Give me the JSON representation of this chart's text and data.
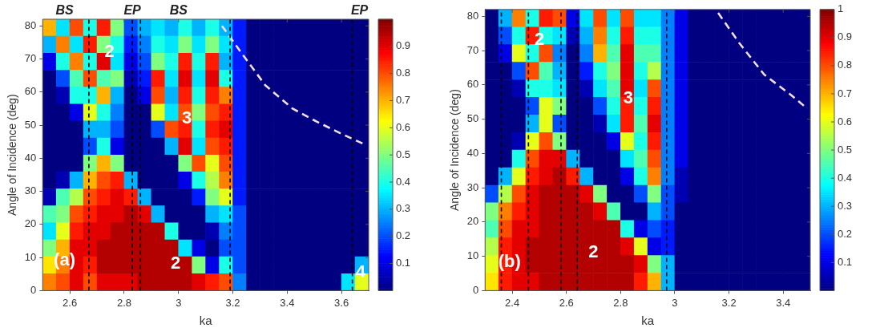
{
  "chart_data": [
    {
      "type": "heatmap",
      "xlabel": "ka",
      "ylabel": "Angle of Incidence (deg)",
      "x": [
        2.525,
        2.575,
        2.625,
        2.675,
        2.725,
        2.775,
        2.825,
        2.875,
        2.925,
        2.975,
        3.025,
        3.075,
        3.125,
        3.175,
        3.225,
        3.275,
        3.325,
        3.375,
        3.425,
        3.475,
        3.525,
        3.575,
        3.625,
        3.675
      ],
      "xlim": [
        2.5,
        3.7
      ],
      "xticks": [
        2.6,
        2.8,
        3,
        3.2,
        3.4,
        3.6
      ],
      "ylim": [
        0,
        82
      ],
      "yticks": [
        0,
        10,
        20,
        30,
        40,
        50,
        60,
        70,
        80
      ],
      "clim": [
        0,
        1
      ],
      "cticks": [
        0.1,
        0.2,
        0.3,
        0.4,
        0.5,
        0.6,
        0.7,
        0.8,
        0.9
      ],
      "cells": [
        [
          0.7,
          0.35,
          0.8,
          0.4,
          0.85,
          0.5,
          0.2,
          0.3,
          0.35,
          0.3,
          0.4,
          0.3,
          0.4,
          0.3,
          0.15,
          0,
          0,
          0,
          0,
          0,
          0,
          0,
          0,
          0
        ],
        [
          0.3,
          0.75,
          0.35,
          0.85,
          0.5,
          0.4,
          0.15,
          0.25,
          0.4,
          0.35,
          0.5,
          0.35,
          0.5,
          0.35,
          0.15,
          0,
          0,
          0,
          0,
          0,
          0,
          0,
          0,
          0
        ],
        [
          0.1,
          0.4,
          0.75,
          0.4,
          0.9,
          0.35,
          0.1,
          0.2,
          0.5,
          0.4,
          0.85,
          0.4,
          0.85,
          0.3,
          0.15,
          0,
          0,
          0,
          0,
          0,
          0,
          0,
          0,
          0
        ],
        [
          0,
          0.2,
          0.45,
          0.8,
          0.45,
          0.5,
          0.05,
          0.15,
          0.85,
          0.35,
          0.9,
          0.35,
          0.9,
          0.4,
          0.15,
          0,
          0,
          0,
          0,
          0,
          0,
          0,
          0,
          0
        ],
        [
          0,
          0.05,
          0.4,
          0.4,
          0.7,
          0.3,
          0,
          0.1,
          0.8,
          0.3,
          0.85,
          0.4,
          0.85,
          0.75,
          0.15,
          0,
          0,
          0,
          0,
          0,
          0,
          0,
          0,
          0
        ],
        [
          0,
          0,
          0.1,
          0.6,
          0.4,
          0.25,
          0,
          0,
          0.6,
          0.35,
          0.8,
          0.5,
          0.8,
          0.85,
          0.15,
          0,
          0,
          0,
          0,
          0,
          0,
          0,
          0,
          0
        ],
        [
          0,
          0,
          0,
          0.3,
          0.3,
          0.2,
          0,
          0,
          0.2,
          0.8,
          0.85,
          0.4,
          0.85,
          0.9,
          0.15,
          0,
          0,
          0,
          0,
          0,
          0,
          0,
          0,
          0
        ],
        [
          0,
          0,
          0,
          0.2,
          0.4,
          0.1,
          0,
          0,
          0,
          0.3,
          0.9,
          0.35,
          0.8,
          0.85,
          0.15,
          0,
          0,
          0,
          0,
          0,
          0,
          0,
          0,
          0
        ],
        [
          0,
          0,
          0,
          0.5,
          0.7,
          0.5,
          0,
          0,
          0,
          0,
          0.5,
          0.8,
          0.6,
          0.8,
          0.15,
          0,
          0,
          0,
          0,
          0,
          0,
          0,
          0,
          0
        ],
        [
          0,
          0.05,
          0.3,
          0.7,
          0.8,
          0.85,
          0.3,
          0,
          0,
          0,
          0.1,
          0.4,
          0.55,
          0.75,
          0.15,
          0,
          0,
          0,
          0,
          0,
          0,
          0,
          0,
          0
        ],
        [
          0.05,
          0.45,
          0.55,
          0.8,
          0.85,
          0.9,
          0.85,
          0.3,
          0,
          0,
          0,
          0.15,
          0.5,
          0.6,
          0.15,
          0,
          0,
          0,
          0,
          0,
          0,
          0,
          0,
          0
        ],
        [
          0.45,
          0.5,
          0.8,
          0.85,
          0.9,
          0.9,
          0.95,
          0.9,
          0.3,
          0,
          0,
          0,
          0.3,
          0.35,
          0.2,
          0,
          0,
          0,
          0,
          0,
          0,
          0,
          0,
          0
        ],
        [
          0.35,
          0.6,
          0.85,
          0.9,
          0.9,
          0.95,
          0.95,
          0.95,
          0.95,
          0.4,
          0,
          0,
          0.05,
          0.25,
          0.2,
          0,
          0,
          0,
          0,
          0,
          0,
          0,
          0,
          0
        ],
        [
          0.5,
          0.7,
          0.9,
          0.9,
          0.95,
          0.95,
          0.95,
          0.95,
          0.95,
          0.95,
          0.35,
          0.1,
          0,
          0.2,
          0.2,
          0,
          0,
          0,
          0,
          0,
          0,
          0,
          0,
          0
        ],
        [
          0.65,
          0.75,
          0.9,
          0.85,
          0.95,
          0.95,
          0.95,
          0.95,
          0.95,
          0.95,
          0.95,
          0.5,
          0.1,
          0.4,
          0.2,
          0,
          0,
          0,
          0,
          0,
          0,
          0,
          0,
          0.3
        ],
        [
          0.75,
          0.8,
          0.9,
          0.8,
          0.9,
          0.9,
          0.9,
          0.95,
          0.95,
          0.95,
          0.95,
          0.9,
          0.85,
          0.8,
          0.25,
          0,
          0,
          0,
          0,
          0,
          0,
          0,
          0.35,
          0.6
        ]
      ],
      "series": [
        {
          "type": "line",
          "color": "#f2dfe8",
          "line_style": "dashed",
          "marker": "none",
          "x": [
            3.16,
            3.23,
            3.32,
            3.42,
            3.51,
            3.61,
            3.69
          ],
          "values": [
            80,
            72,
            62,
            55,
            51,
            47,
            44
          ]
        }
      ],
      "ref_lines": [
        {
          "axis": "x",
          "value": 2.67,
          "color": "#000000",
          "line_style": "dashed"
        },
        {
          "axis": "x",
          "value": 2.83,
          "color": "#000000",
          "line_style": "dashed"
        },
        {
          "axis": "x",
          "value": 2.86,
          "color": "#000000",
          "line_style": "dashed"
        },
        {
          "axis": "x",
          "value": 3.19,
          "color": "#000000",
          "line_style": "dashed"
        },
        {
          "axis": "x",
          "value": 3.64,
          "color": "#000000",
          "line_style": "dashed"
        }
      ],
      "annotations": [
        "BS",
        "EP",
        "BS",
        "EP",
        "2",
        "3",
        "(a)",
        "2",
        "4"
      ]
    },
    {
      "type": "heatmap",
      "xlabel": "ka",
      "ylabel": "Angle of Incidence (deg)",
      "x": [
        2.325,
        2.375,
        2.425,
        2.475,
        2.525,
        2.575,
        2.625,
        2.675,
        2.725,
        2.775,
        2.825,
        2.875,
        2.925,
        2.975,
        3.025,
        3.075,
        3.125,
        3.175,
        3.225,
        3.275,
        3.325,
        3.375,
        3.425,
        3.475
      ],
      "xlim": [
        2.3,
        3.5
      ],
      "xticks": [
        2.4,
        2.6,
        2.8,
        3,
        3.2,
        3.4
      ],
      "ylim": [
        0,
        82
      ],
      "yticks": [
        0,
        10,
        20,
        30,
        40,
        50,
        60,
        70,
        80
      ],
      "clim": [
        0,
        1
      ],
      "cticks": [
        0.1,
        0.2,
        0.3,
        0.4,
        0.5,
        0.6,
        0.7,
        0.8,
        0.9,
        1
      ],
      "cells": [
        [
          0,
          0.3,
          0.75,
          0.4,
          0.85,
          0.8,
          0.1,
          0.35,
          0.8,
          0.35,
          0.8,
          0.35,
          0.35,
          0.25,
          0.1,
          0,
          0,
          0,
          0,
          0,
          0,
          0,
          0,
          0
        ],
        [
          0,
          0.2,
          0.4,
          0.85,
          0.4,
          0.35,
          0.05,
          0.3,
          0.75,
          0.4,
          0.85,
          0.4,
          0.4,
          0.25,
          0.1,
          0,
          0,
          0,
          0,
          0,
          0,
          0,
          0,
          0
        ],
        [
          0,
          0.1,
          0.6,
          0.4,
          0.8,
          0.25,
          0,
          0.25,
          0.7,
          0.45,
          0.9,
          0.45,
          0.45,
          0.25,
          0.1,
          0,
          0,
          0,
          0,
          0,
          0,
          0,
          0,
          0
        ],
        [
          0,
          0,
          0.2,
          0.8,
          0.45,
          0.3,
          0,
          0.15,
          0.4,
          0.5,
          0.9,
          0.4,
          0.55,
          0.25,
          0.1,
          0,
          0,
          0,
          0,
          0,
          0,
          0,
          0,
          0
        ],
        [
          0,
          0,
          0.05,
          0.4,
          0.4,
          0.35,
          0,
          0.05,
          0.35,
          0.45,
          0.9,
          0.35,
          0.8,
          0.25,
          0.1,
          0,
          0,
          0,
          0,
          0,
          0,
          0,
          0,
          0
        ],
        [
          0,
          0,
          0,
          0.2,
          0.6,
          0.5,
          0,
          0,
          0.2,
          0.4,
          0.85,
          0.4,
          0.85,
          0.25,
          0.1,
          0,
          0,
          0,
          0,
          0,
          0,
          0,
          0,
          0
        ],
        [
          0,
          0,
          0,
          0.3,
          0.6,
          0.2,
          0,
          0,
          0.05,
          0.35,
          0.85,
          0.45,
          0.9,
          0.25,
          0.1,
          0,
          0,
          0,
          0,
          0,
          0,
          0,
          0,
          0
        ],
        [
          0,
          0,
          0.05,
          0.6,
          0.8,
          0.5,
          0,
          0,
          0,
          0.1,
          0.6,
          0.4,
          0.85,
          0.25,
          0.1,
          0,
          0,
          0,
          0,
          0,
          0,
          0,
          0,
          0
        ],
        [
          0,
          0,
          0.4,
          0.8,
          0.9,
          0.9,
          0.3,
          0,
          0,
          0,
          0.35,
          0.45,
          0.8,
          0.25,
          0.1,
          0,
          0,
          0,
          0,
          0,
          0,
          0,
          0,
          0
        ],
        [
          0,
          0.3,
          0.6,
          0.85,
          0.9,
          0.95,
          0.85,
          0.3,
          0,
          0,
          0.1,
          0.4,
          0.75,
          0.25,
          0.05,
          0,
          0,
          0,
          0,
          0,
          0,
          0,
          0,
          0
        ],
        [
          0.2,
          0.55,
          0.8,
          0.9,
          0.95,
          0.95,
          0.95,
          0.9,
          0.5,
          0,
          0,
          0.2,
          0.5,
          0.2,
          0.05,
          0,
          0,
          0,
          0,
          0,
          0,
          0,
          0,
          0
        ],
        [
          0.5,
          0.75,
          0.85,
          0.9,
          0.95,
          0.95,
          0.95,
          0.95,
          0.9,
          0.45,
          0,
          0,
          0.3,
          0.2,
          0,
          0,
          0,
          0,
          0,
          0,
          0,
          0,
          0,
          0
        ],
        [
          0.45,
          0.8,
          0.9,
          0.9,
          0.95,
          0.95,
          0.95,
          0.95,
          0.95,
          0.95,
          0.4,
          0.1,
          0.2,
          0.15,
          0,
          0,
          0,
          0,
          0,
          0,
          0,
          0,
          0,
          0
        ],
        [
          0.55,
          0.85,
          0.9,
          0.95,
          0.95,
          0.95,
          0.95,
          0.95,
          0.95,
          0.95,
          0.9,
          0.6,
          0.1,
          0.15,
          0,
          0,
          0,
          0,
          0,
          0,
          0,
          0,
          0,
          0
        ],
        [
          0.6,
          0.85,
          0.9,
          0.95,
          0.95,
          0.95,
          0.95,
          0.95,
          0.95,
          0.95,
          0.95,
          0.9,
          0.5,
          0.3,
          0,
          0,
          0,
          0,
          0,
          0,
          0,
          0,
          0,
          0
        ],
        [
          0.65,
          0.85,
          0.9,
          0.9,
          0.95,
          0.95,
          0.95,
          0.95,
          0.95,
          0.95,
          0.95,
          0.85,
          0.7,
          0.3,
          0,
          0,
          0,
          0,
          0,
          0,
          0,
          0,
          0,
          0
        ]
      ],
      "series": [
        {
          "type": "line",
          "color": "#f2dfe8",
          "line_style": "dashed",
          "marker": "none",
          "x": [
            3.16,
            3.24,
            3.33,
            3.43,
            3.49
          ],
          "values": [
            81,
            72,
            63,
            57,
            53
          ]
        }
      ],
      "ref_lines": [
        {
          "axis": "x",
          "value": 2.36,
          "color": "#000000",
          "line_style": "dashed"
        },
        {
          "axis": "x",
          "value": 2.46,
          "color": "#000000",
          "line_style": "dashed"
        },
        {
          "axis": "x",
          "value": 2.58,
          "color": "#000000",
          "line_style": "dashed"
        },
        {
          "axis": "x",
          "value": 2.64,
          "color": "#000000",
          "line_style": "dashed"
        },
        {
          "axis": "x",
          "value": 2.97,
          "color": "#000000",
          "line_style": "dashed"
        }
      ],
      "annotations": [
        "2",
        "3",
        "(b)",
        "2"
      ]
    }
  ]
}
